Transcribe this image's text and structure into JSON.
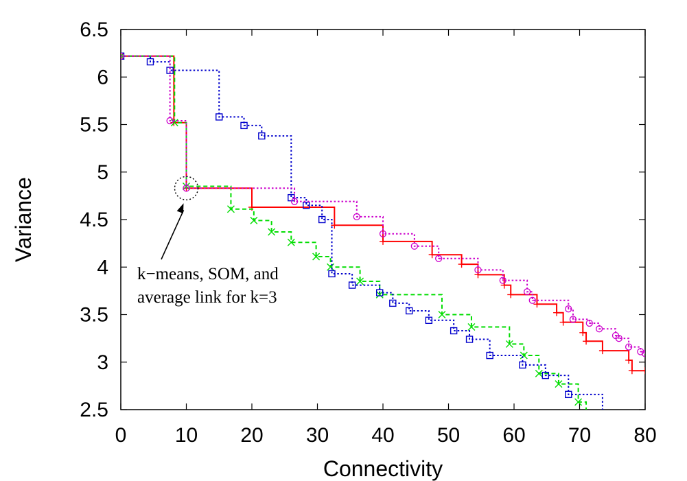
{
  "chart_data": {
    "type": "line",
    "title": "",
    "xlabel": "Connectivity",
    "ylabel": "Variance",
    "xlim": [
      0,
      80
    ],
    "ylim": [
      2.5,
      6.5
    ],
    "xticks": [
      "0",
      "10",
      "20",
      "30",
      "40",
      "50",
      "60",
      "70",
      "80"
    ],
    "yticks": [
      "2.5",
      "3",
      "3.5",
      "4",
      "4.5",
      "5",
      "5.5",
      "6",
      "6.5"
    ],
    "grid": false,
    "legend": false,
    "step": true,
    "series": [
      {
        "color": "#ff0000",
        "line_style": "solid",
        "marker": "plus",
        "points": [
          [
            0,
            6.22
          ],
          [
            8.1,
            5.52
          ],
          [
            10,
            4.83
          ],
          [
            20,
            4.63
          ],
          [
            32.6,
            4.44
          ],
          [
            40,
            4.27
          ],
          [
            47.5,
            4.13
          ],
          [
            52,
            4.03
          ],
          [
            54.5,
            3.92
          ],
          [
            58.5,
            3.81
          ],
          [
            59.5,
            3.71
          ],
          [
            63.5,
            3.61
          ],
          [
            66.5,
            3.52
          ],
          [
            67.5,
            3.42
          ],
          [
            70.5,
            3.31
          ],
          [
            71,
            3.22
          ],
          [
            73.5,
            3.12
          ],
          [
            77.5,
            3.02
          ],
          [
            78,
            2.91
          ],
          [
            80,
            2.91
          ]
        ]
      },
      {
        "color": "#00dd00",
        "line_style": "dashed",
        "marker": "x",
        "points": [
          [
            0,
            6.22
          ],
          [
            8.2,
            5.52
          ],
          [
            10,
            4.85
          ],
          [
            16.8,
            4.61
          ],
          [
            20.3,
            4.49
          ],
          [
            23,
            4.37
          ],
          [
            26,
            4.26
          ],
          [
            29.8,
            4.11
          ],
          [
            32,
            4.0
          ],
          [
            36.5,
            3.85
          ],
          [
            39.5,
            3.71
          ],
          [
            49,
            3.5
          ],
          [
            53.5,
            3.37
          ],
          [
            59.3,
            3.19
          ],
          [
            61.5,
            3.07
          ],
          [
            63.8,
            2.88
          ],
          [
            66.8,
            2.77
          ],
          [
            69.8,
            2.58
          ],
          [
            71,
            2.5
          ]
        ]
      },
      {
        "color": "#0000cc",
        "line_style": "dotted",
        "marker": "square",
        "points": [
          [
            0,
            6.22
          ],
          [
            4.5,
            6.16
          ],
          [
            7.5,
            6.07
          ],
          [
            15,
            5.58
          ],
          [
            18.8,
            5.49
          ],
          [
            21.5,
            5.38
          ],
          [
            26,
            4.73
          ],
          [
            28.3,
            4.65
          ],
          [
            30.7,
            4.5
          ],
          [
            32.2,
            3.93
          ],
          [
            35.3,
            3.81
          ],
          [
            39.5,
            3.73
          ],
          [
            41.5,
            3.62
          ],
          [
            44,
            3.54
          ],
          [
            47,
            3.44
          ],
          [
            50.8,
            3.33
          ],
          [
            53.2,
            3.24
          ],
          [
            56.3,
            3.07
          ],
          [
            61.3,
            2.97
          ],
          [
            64.8,
            2.86
          ],
          [
            68.3,
            2.66
          ],
          [
            73.5,
            2.5
          ]
        ]
      },
      {
        "color": "#cc00cc",
        "line_style": "dotted",
        "marker": "circle",
        "points": [
          [
            0,
            6.22
          ],
          [
            7.5,
            5.54
          ],
          [
            10,
            4.83
          ],
          [
            26.5,
            4.69
          ],
          [
            36,
            4.53
          ],
          [
            40,
            4.35
          ],
          [
            44.8,
            4.22
          ],
          [
            48.5,
            4.09
          ],
          [
            54.5,
            3.97
          ],
          [
            58.3,
            3.86
          ],
          [
            62,
            3.74
          ],
          [
            62.8,
            3.65
          ],
          [
            68.3,
            3.56
          ],
          [
            69,
            3.45
          ],
          [
            71.5,
            3.41
          ],
          [
            73,
            3.35
          ],
          [
            75.5,
            3.28
          ],
          [
            76,
            3.25
          ],
          [
            77.5,
            3.16
          ],
          [
            79.3,
            3.11
          ],
          [
            80,
            3.09
          ]
        ]
      }
    ],
    "annotations": [
      {
        "lines": [
          "k−means, SOM, and",
          "average link for k=3"
        ],
        "target": [
          10,
          4.83
        ]
      }
    ]
  }
}
